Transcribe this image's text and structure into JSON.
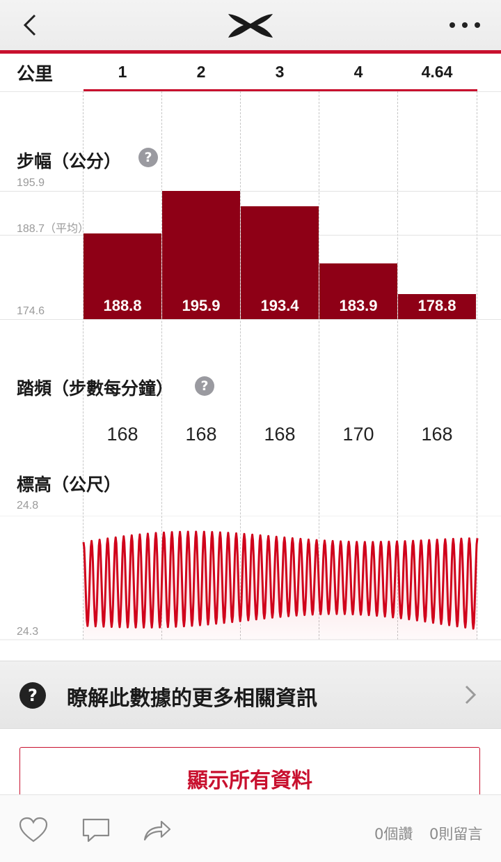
{
  "header": {
    "back_icon": "chevron-left-icon",
    "logo": "under-armour-logo",
    "more_icon": "more-dots-icon"
  },
  "km_row": {
    "label": "公里",
    "values": [
      "1",
      "2",
      "3",
      "4",
      "4.64"
    ]
  },
  "stride": {
    "title": "步幅（公分）",
    "help_icon": "?",
    "axis_max": "195.9",
    "axis_avg": "188.7（平均）",
    "axis_min": "174.6"
  },
  "cadence": {
    "title": "踏頻（步數每分鐘）",
    "help_icon": "?",
    "values": [
      "168",
      "168",
      "168",
      "170",
      "168"
    ]
  },
  "elevation": {
    "title": "標高（公尺）",
    "axis_max": "24.8",
    "axis_min": "24.3"
  },
  "chart_data": [
    {
      "type": "bar",
      "title": "步幅（公分）",
      "categories": [
        "1",
        "2",
        "3",
        "4",
        "4.64"
      ],
      "values": [
        188.8,
        195.9,
        193.4,
        183.9,
        178.8
      ],
      "value_labels": [
        "188.8",
        "195.9",
        "193.4",
        "183.9",
        "178.8"
      ],
      "ylim": [
        174.6,
        195.9
      ],
      "average": 188.7,
      "color": "#8e0016"
    },
    {
      "type": "line",
      "title": "標高（公尺）",
      "ylim": [
        24.3,
        24.8
      ],
      "color": "#d0021b",
      "oscillation_count": 49
    }
  ],
  "learn_more": {
    "help_icon": "?",
    "text": "瞭解此數據的更多相關資訊",
    "chevron_icon": "chevron-right-icon"
  },
  "show_all_button": "顯示所有資料",
  "footer": {
    "like_icon": "heart-icon",
    "comment_icon": "comment-icon",
    "share_icon": "share-icon",
    "likes": "0個讚",
    "comments": "0則留言"
  },
  "colors": {
    "accent": "#c8102e",
    "bar": "#8e0016",
    "line": "#d0021b"
  }
}
